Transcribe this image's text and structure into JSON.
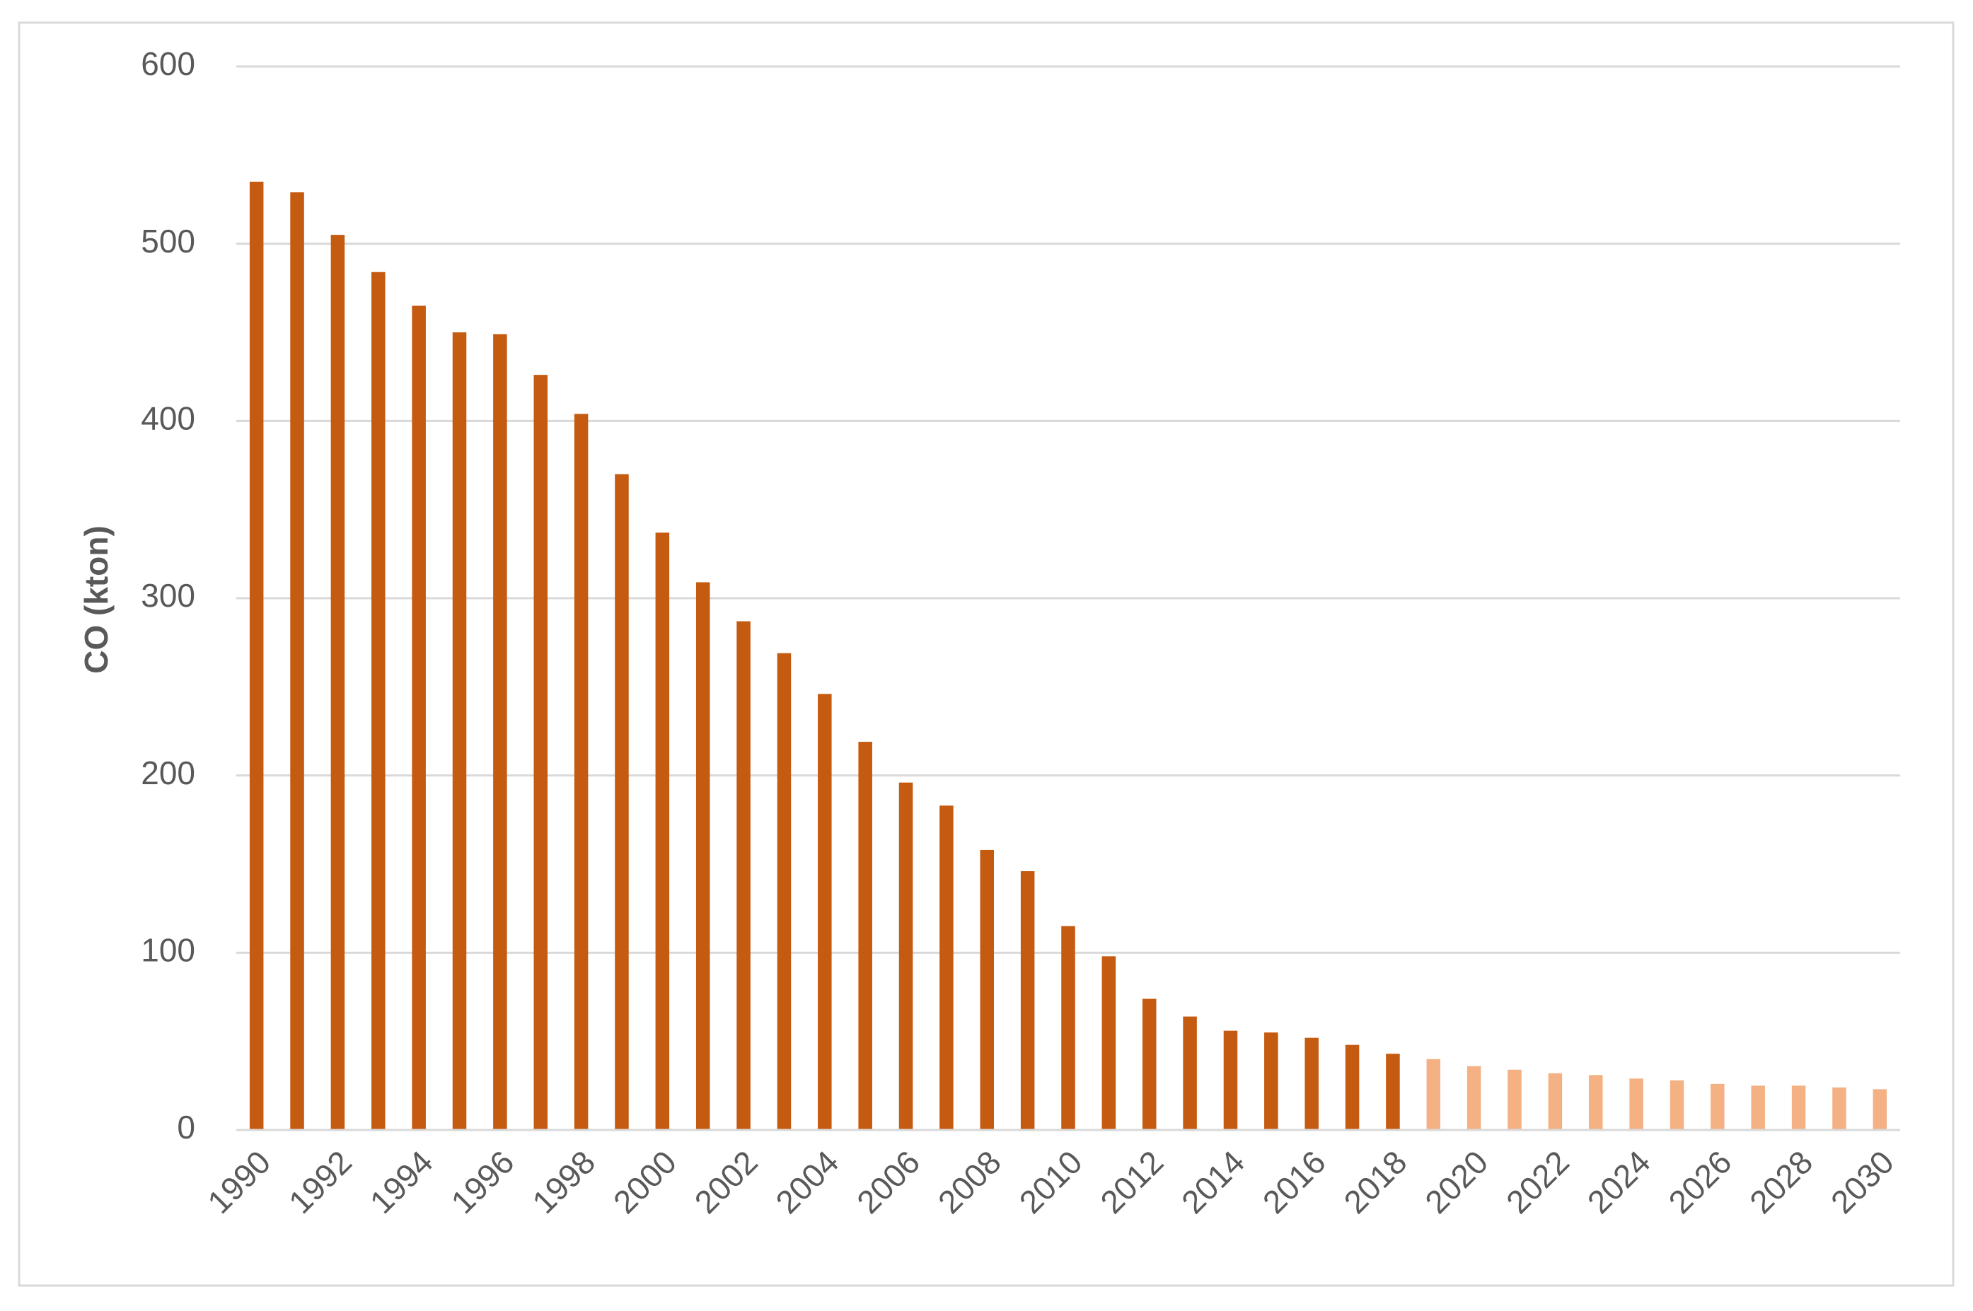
{
  "chart_data": {
    "type": "bar",
    "y_label": "CO (kton)",
    "categories": [
      "1990",
      null,
      "1992",
      null,
      "1994",
      null,
      "1996",
      null,
      "1998",
      null,
      "2000",
      null,
      "2002",
      null,
      "2004",
      null,
      "2006",
      null,
      "2008",
      null,
      "2010",
      null,
      "2012",
      null,
      "2014",
      null,
      "2016",
      null,
      "2018",
      null,
      "2020",
      null,
      "2022",
      null,
      "2024",
      null,
      "2026",
      null,
      "2028",
      null,
      "2030"
    ],
    "values": [
      535,
      529,
      505,
      484,
      465,
      450,
      449,
      426,
      404,
      370,
      337,
      309,
      287,
      269,
      246,
      219,
      196,
      183,
      158,
      146,
      115,
      98,
      74,
      64,
      56,
      55,
      52,
      48,
      43,
      40,
      36,
      34,
      32,
      31,
      29,
      28,
      26,
      25,
      25,
      24,
      23
    ],
    "colors": [
      "#c55a11",
      "#c55a11",
      "#c55a11",
      "#c55a11",
      "#c55a11",
      "#c55a11",
      "#c55a11",
      "#c55a11",
      "#c55a11",
      "#c55a11",
      "#c55a11",
      "#c55a11",
      "#c55a11",
      "#c55a11",
      "#c55a11",
      "#c55a11",
      "#c55a11",
      "#c55a11",
      "#c55a11",
      "#c55a11",
      "#c55a11",
      "#c55a11",
      "#c55a11",
      "#c55a11",
      "#c55a11",
      "#c55a11",
      "#c55a11",
      "#c55a11",
      "#c55a11",
      "#f4b183",
      "#f4b183",
      "#f4b183",
      "#f4b183",
      "#f4b183",
      "#f4b183",
      "#f4b183",
      "#f4b183",
      "#f4b183",
      "#f4b183",
      "#f4b183",
      "#f4b183"
    ],
    "ylim": [
      0,
      600
    ],
    "yticks": [
      0,
      100,
      200,
      300,
      400,
      500,
      600
    ],
    "grid": true
  }
}
